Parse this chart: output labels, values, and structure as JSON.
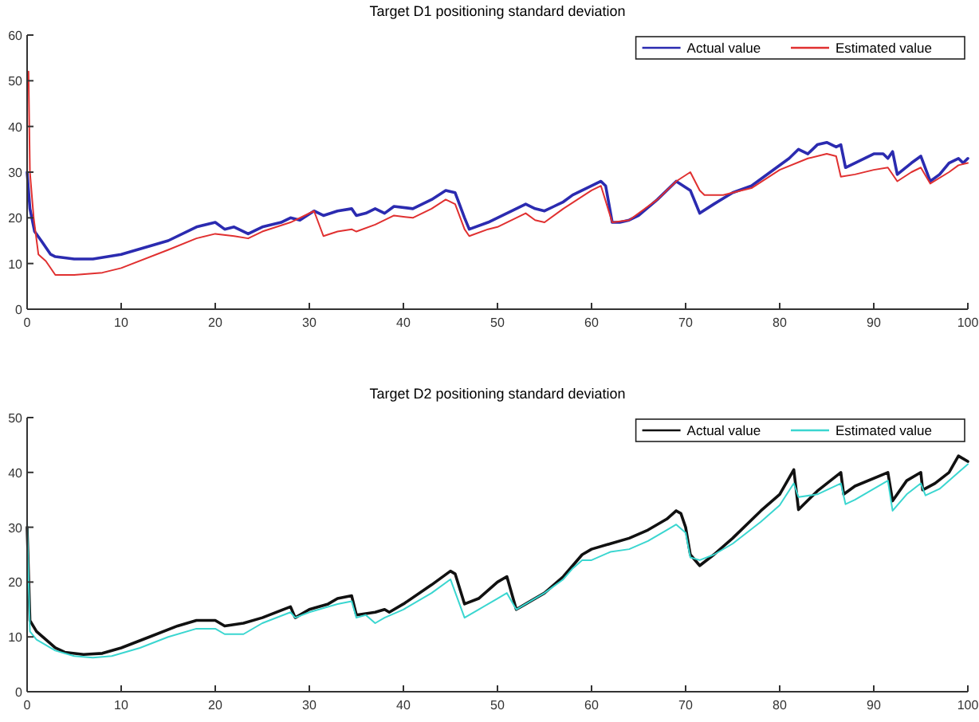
{
  "chart_data": [
    {
      "type": "line",
      "title": "Target D1 positioning standard deviation",
      "xlim": [
        0,
        100
      ],
      "ylim": [
        0,
        60
      ],
      "xticks": [
        0,
        10,
        20,
        30,
        40,
        50,
        60,
        70,
        80,
        90,
        100
      ],
      "yticks": [
        0,
        10,
        20,
        30,
        40,
        50,
        60
      ],
      "legend": "top right",
      "series": [
        {
          "name": "Actual value",
          "color": "#2b2bb0",
          "x": [
            0,
            0.3,
            0.8,
            1.5,
            2.5,
            3,
            5,
            7,
            10,
            15,
            18,
            20,
            21,
            22,
            23.5,
            25,
            27,
            28,
            29,
            30.5,
            31.5,
            33,
            34.5,
            35,
            36,
            37,
            38,
            39,
            41,
            43,
            44.5,
            45.5,
            46.5,
            47,
            49,
            50,
            52,
            53,
            54,
            55,
            56,
            57,
            58,
            60,
            61,
            61.5,
            62.2,
            63,
            64,
            65,
            67,
            69,
            70.5,
            71.5,
            73,
            75,
            77,
            79,
            81,
            82,
            83,
            84,
            85,
            86,
            86.5,
            87,
            88,
            89,
            90,
            91,
            91.5,
            92,
            92.5,
            94,
            95,
            96,
            97,
            98,
            99,
            99.5,
            100
          ],
          "values": [
            30,
            22,
            17,
            15,
            12,
            11.5,
            11,
            11,
            12,
            15,
            18,
            19,
            17.5,
            18,
            16.5,
            18,
            19,
            20,
            19.5,
            21.5,
            20.5,
            21.5,
            22,
            20.5,
            21,
            22,
            21,
            22.5,
            22,
            24,
            26,
            25.5,
            20,
            17.5,
            19,
            20,
            22,
            23,
            22,
            21.5,
            22.5,
            23.5,
            25,
            27,
            28,
            27,
            19,
            19,
            19.5,
            20.5,
            24,
            28,
            26,
            21,
            23,
            25.5,
            27,
            30,
            33,
            35,
            34,
            36,
            36.5,
            35.5,
            36,
            31,
            32,
            33,
            34,
            34,
            33,
            34.5,
            29.5,
            32,
            33.5,
            28,
            29.5,
            32,
            33,
            32,
            33
          ]
        },
        {
          "name": "Estimated value",
          "color": "#e03030",
          "x": [
            0.15,
            0.3,
            0.7,
            1.2,
            2,
            3,
            5,
            8,
            10,
            15,
            18,
            20,
            22,
            23.5,
            25,
            28,
            30.5,
            31.5,
            33,
            34.5,
            35,
            37,
            39,
            41,
            43,
            44.5,
            45.5,
            46.5,
            47,
            49,
            50,
            52,
            53,
            54,
            55,
            57,
            60,
            61,
            62.2,
            64,
            67,
            69,
            70.5,
            71.5,
            72,
            74,
            75,
            77,
            80,
            83,
            85,
            86,
            86.5,
            88,
            90,
            91.5,
            92.5,
            94,
            95,
            96,
            98,
            99,
            100
          ],
          "values": [
            52,
            30,
            20,
            12,
            10.5,
            7.5,
            7.5,
            8,
            9,
            13,
            15.5,
            16.5,
            16,
            15.5,
            17,
            19,
            21.5,
            16,
            17,
            17.5,
            17,
            18.5,
            20.5,
            20,
            22,
            24,
            23,
            17.5,
            16,
            17.5,
            18,
            20,
            21,
            19.5,
            19,
            22,
            26,
            27,
            19,
            19.5,
            24,
            28,
            30,
            26,
            25,
            25,
            25.5,
            26.5,
            30.5,
            33,
            34,
            33.5,
            29,
            29.5,
            30.5,
            31,
            28,
            30,
            31,
            27.5,
            30,
            31.5,
            32
          ]
        }
      ]
    },
    {
      "type": "line",
      "title": "Target D2 positioning standard deviation",
      "xlim": [
        0,
        100
      ],
      "ylim": [
        0,
        50
      ],
      "xticks": [
        0,
        10,
        20,
        30,
        40,
        50,
        60,
        70,
        80,
        90,
        100
      ],
      "yticks": [
        0,
        10,
        20,
        30,
        40,
        50
      ],
      "legend": "top right",
      "series": [
        {
          "name": "Actual value",
          "color": "#111111",
          "x": [
            0,
            0.3,
            1,
            2,
            3,
            4,
            6,
            8,
            10,
            13,
            16,
            18,
            20,
            21,
            23,
            25,
            28,
            28.5,
            30,
            32,
            33,
            34.5,
            35,
            37,
            38,
            38.5,
            40,
            43,
            45,
            45.5,
            46.5,
            48,
            50,
            51,
            52,
            53,
            55,
            57,
            58,
            59,
            60,
            62,
            64,
            66,
            68,
            69,
            69.5,
            70,
            70.5,
            71.5,
            73,
            75,
            78,
            80,
            81.5,
            82,
            84,
            86.5,
            86.8,
            88,
            91.5,
            92,
            93.5,
            95,
            95.2,
            96.5,
            98,
            99,
            100
          ],
          "values": [
            30,
            13,
            11,
            9.5,
            8,
            7.2,
            6.8,
            7,
            8,
            10,
            12,
            13,
            13,
            12,
            12.5,
            13.5,
            15.5,
            13.5,
            15,
            16,
            17,
            17.5,
            14,
            14.5,
            15,
            14.5,
            16,
            19.5,
            22,
            21.5,
            16,
            17,
            20,
            21,
            15,
            16,
            18,
            21,
            23,
            25,
            26,
            27,
            28,
            29.5,
            31.5,
            33,
            32.5,
            30,
            25,
            23,
            25,
            28,
            33,
            36,
            40.5,
            33.2,
            36.6,
            40,
            36,
            37.5,
            40,
            34.8,
            38.5,
            40,
            36.8,
            38,
            40,
            43,
            42
          ]
        },
        {
          "name": "Estimated value",
          "color": "#3ad6d0",
          "x": [
            0,
            0.3,
            1,
            3,
            5,
            7,
            9,
            12,
            15,
            18,
            20,
            21,
            23,
            25,
            28,
            28.5,
            30,
            33,
            34.5,
            35,
            36,
            37,
            38,
            40,
            43,
            45,
            46.5,
            48,
            50,
            51,
            52,
            53,
            55,
            57,
            58,
            59,
            60,
            62,
            64,
            66,
            68,
            69,
            70,
            70.5,
            71.5,
            73,
            75,
            78,
            80,
            81.5,
            82,
            84,
            86.5,
            87,
            88,
            90,
            91.5,
            92,
            93.5,
            95,
            95.5,
            97,
            99,
            100
          ],
          "values": [
            31,
            11,
            9.5,
            7.5,
            6.5,
            6.2,
            6.5,
            8,
            10,
            11.5,
            11.5,
            10.5,
            10.5,
            12.5,
            14.5,
            13.5,
            14.5,
            16,
            16.5,
            13.5,
            14,
            12.5,
            13.5,
            15,
            18,
            20.5,
            13.5,
            15,
            17,
            18,
            15,
            16,
            18,
            20.5,
            22.5,
            24,
            24,
            25.5,
            26,
            27.5,
            29.5,
            30.5,
            29,
            24.5,
            24,
            25,
            27,
            31,
            34,
            38,
            35.5,
            36,
            38,
            34.2,
            35,
            37,
            38.5,
            33,
            36,
            38,
            35.8,
            37,
            40,
            41.5
          ]
        }
      ]
    }
  ]
}
